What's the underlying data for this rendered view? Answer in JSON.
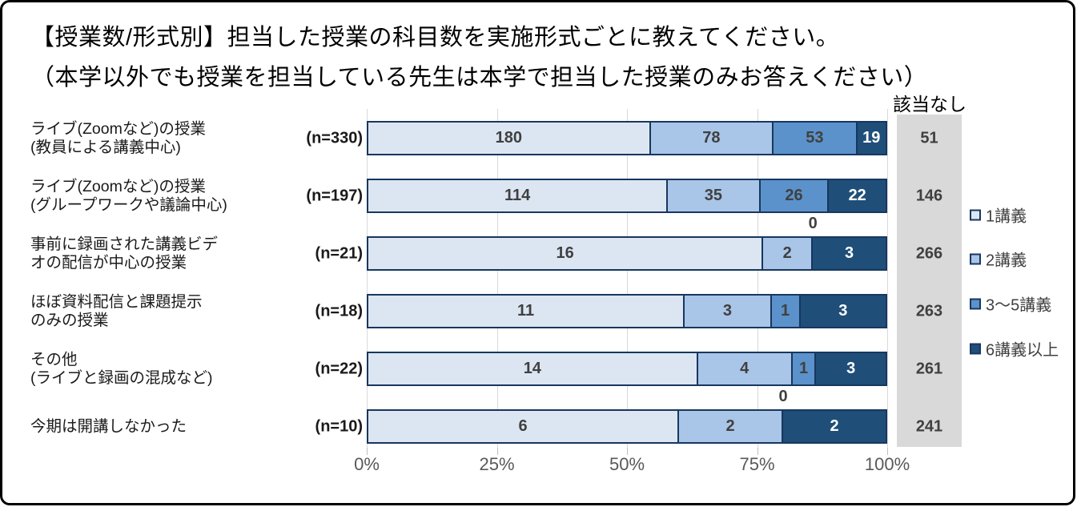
{
  "title": {
    "line1": "【授業数/形式別】担当した授業の科目数を実施形式ごとに教えてください。",
    "line2": "（本学以外でも授業を担当している先生は本学で担当した授業のみお答えください）"
  },
  "na_column": {
    "header": "該当なし"
  },
  "x_axis": {
    "tick_labels": [
      "0%",
      "25%",
      "50%",
      "75%",
      "100%"
    ],
    "range": [
      0,
      100
    ]
  },
  "legend": {
    "position": "right",
    "items": [
      {
        "label": "1講義",
        "color": "#dce6f2"
      },
      {
        "label": "2講義",
        "color": "#a9c5e8"
      },
      {
        "label": "3〜5講義",
        "color": "#5b92cb"
      },
      {
        "label": "6講義以上",
        "color": "#1f4e79"
      }
    ]
  },
  "colors": {
    "bar_border": "#17375e",
    "na_band": "#d9d9d9",
    "gridline": "#d9d9d9",
    "tick": "#bfbfbf",
    "axis_text": "#595959",
    "label_dark": "#404040",
    "label_light": "#ffffff",
    "frame_border": "#000000",
    "background": "#ffffff"
  },
  "chart_data": {
    "type": "bar",
    "orientation": "horizontal",
    "stacked": true,
    "normalized": "percent-of-n",
    "grid": true,
    "xlim": [
      0,
      100
    ],
    "series_names": [
      "1講義",
      "2講義",
      "3〜5講義",
      "6講義以上"
    ],
    "rows": [
      {
        "label_lines": [
          "ライブ(Zoomなど)の授業",
          "(教員による講義中心)"
        ],
        "n_label": "(n=330)",
        "n": 330,
        "values": [
          180,
          78,
          53,
          19
        ],
        "na_value": 51
      },
      {
        "label_lines": [
          "ライブ(Zoomなど)の授業",
          "(グループワークや議論中心)"
        ],
        "n_label": "(n=197)",
        "n": 197,
        "values": [
          114,
          35,
          26,
          22
        ],
        "na_value": 146
      },
      {
        "label_lines": [
          "事前に録画された講義ビデ",
          "オの配信が中心の授業"
        ],
        "n_label": "(n=21)",
        "n": 21,
        "values": [
          16,
          2,
          0,
          3
        ],
        "na_value": 266
      },
      {
        "label_lines": [
          "ほぼ資料配信と課題提示",
          "のみの授業"
        ],
        "n_label": "(n=18)",
        "n": 18,
        "values": [
          11,
          3,
          1,
          3
        ],
        "na_value": 263
      },
      {
        "label_lines": [
          "その他",
          "(ライブと録画の混成など)"
        ],
        "n_label": "(n=22)",
        "n": 22,
        "values": [
          14,
          4,
          1,
          3
        ],
        "na_value": 261
      },
      {
        "label_lines": [
          "今期は開講しなかった"
        ],
        "n_label": "(n=10)",
        "n": 10,
        "values": [
          6,
          2,
          0,
          2
        ],
        "na_value": 241
      }
    ]
  }
}
